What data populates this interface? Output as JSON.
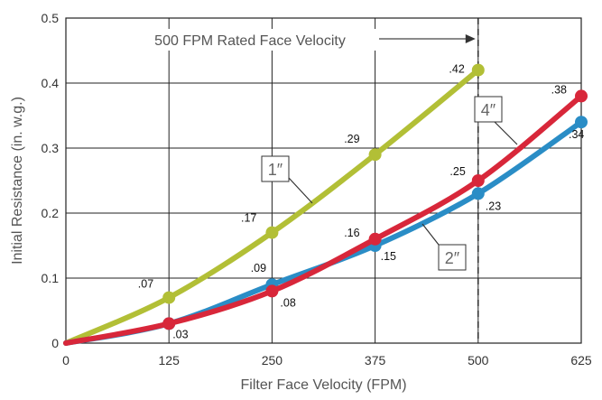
{
  "chart_data": {
    "type": "line",
    "title": "",
    "xlabel": "Filter Face Velocity (FPM)",
    "ylabel": "Initial Resistance (in. w.g.)",
    "xlim": [
      0,
      625
    ],
    "ylim": [
      0,
      0.5
    ],
    "x_ticks": [
      "0",
      "125",
      "250",
      "375",
      "500",
      "625"
    ],
    "y_ticks": [
      "0",
      "0.1",
      "0.2",
      "0.3",
      "0.4",
      "0.5"
    ],
    "grid": true,
    "series": [
      {
        "name": "1″",
        "color": "#b2bf36",
        "points": [
          {
            "x": 0,
            "y": 0,
            "label": ""
          },
          {
            "x": 125,
            "y": 0.07,
            "label": ".07"
          },
          {
            "x": 250,
            "y": 0.17,
            "label": ".17"
          },
          {
            "x": 375,
            "y": 0.29,
            "label": ".29"
          },
          {
            "x": 500,
            "y": 0.42,
            "label": ".42"
          }
        ]
      },
      {
        "name": "2″",
        "color": "#2a8dc6",
        "points": [
          {
            "x": 0,
            "y": 0,
            "label": ""
          },
          {
            "x": 125,
            "y": 0.03,
            "label": ""
          },
          {
            "x": 250,
            "y": 0.09,
            "label": ".09"
          },
          {
            "x": 375,
            "y": 0.15,
            "label": ".15"
          },
          {
            "x": 500,
            "y": 0.23,
            "label": ".23"
          },
          {
            "x": 625,
            "y": 0.34,
            "label": ".34"
          }
        ]
      },
      {
        "name": "4″",
        "color": "#d8273a",
        "points": [
          {
            "x": 0,
            "y": 0,
            "label": ""
          },
          {
            "x": 125,
            "y": 0.03,
            "label": ".03"
          },
          {
            "x": 250,
            "y": 0.08,
            "label": ".08"
          },
          {
            "x": 375,
            "y": 0.16,
            "label": ".16"
          },
          {
            "x": 500,
            "y": 0.25,
            "label": ".25"
          },
          {
            "x": 625,
            "y": 0.38,
            "label": ".38"
          }
        ]
      }
    ],
    "reference_line": {
      "x": 500,
      "label": "500 FPM Rated Face Velocity",
      "style": "dashed"
    }
  }
}
